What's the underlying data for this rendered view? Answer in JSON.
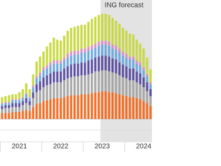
{
  "chart_data": {
    "type": "stacked-bar",
    "categories": [
      null,
      null,
      null,
      null,
      null,
      "2021",
      null,
      null,
      null,
      null,
      null,
      null,
      null,
      null,
      null,
      null,
      null,
      "2022",
      null,
      null,
      null,
      null,
      null,
      null,
      null,
      null,
      null,
      null,
      null,
      "2023",
      null,
      null,
      null,
      null,
      null,
      null,
      null,
      null,
      null,
      null,
      null,
      "2024",
      null,
      null
    ],
    "series": [
      {
        "color": "#f26b21",
        "values": [
          0.6,
          0.6,
          0.6,
          0.7,
          0.7,
          0.7,
          0.8,
          0.9,
          0.8,
          1.2,
          1.5,
          1.6,
          1.8,
          1.9,
          2.0,
          2.1,
          2.1,
          2.1,
          2.2,
          2.3,
          2.4,
          2.4,
          2.4,
          2.5,
          2.5,
          2.5,
          2.6,
          2.7,
          2.7,
          2.8,
          2.8,
          2.7,
          2.7,
          2.6,
          2.5,
          2.4,
          2.3,
          2.2,
          2.2,
          2.1,
          2.0,
          1.8,
          1.6,
          1.3
        ]
      },
      {
        "color": "#a6a6a6",
        "values": [
          0.4,
          0.5,
          0.5,
          0.5,
          0.5,
          0.5,
          0.6,
          0.7,
          0.6,
          0.9,
          1.2,
          1.3,
          1.4,
          1.5,
          1.5,
          1.6,
          1.6,
          1.6,
          1.7,
          1.8,
          1.8,
          1.9,
          1.9,
          1.9,
          1.9,
          2.0,
          2.0,
          2.1,
          2.1,
          2.1,
          2.1,
          2.1,
          2.0,
          2.0,
          1.9,
          1.8,
          1.8,
          1.7,
          1.7,
          1.6,
          1.5,
          1.4,
          1.2,
          1.0
        ]
      },
      {
        "color": "#5b4f9e",
        "values": [
          0.3,
          0.3,
          0.3,
          0.4,
          0.4,
          0.4,
          0.4,
          0.5,
          0.4,
          0.6,
          0.8,
          0.9,
          1.0,
          1.0,
          1.1,
          1.1,
          1.1,
          1.1,
          1.2,
          1.2,
          1.3,
          1.3,
          1.3,
          1.3,
          1.3,
          1.4,
          1.4,
          1.4,
          1.5,
          1.5,
          1.5,
          1.5,
          1.4,
          1.4,
          1.3,
          1.3,
          1.2,
          1.2,
          1.2,
          1.1,
          1.1,
          1.0,
          0.9,
          0.7
        ]
      },
      {
        "color": "#6fa8dc",
        "values": [
          0.2,
          0.2,
          0.2,
          0.3,
          0.3,
          0.3,
          0.3,
          0.4,
          0.3,
          0.5,
          0.6,
          0.6,
          0.7,
          0.7,
          0.8,
          0.8,
          0.8,
          0.8,
          0.8,
          0.9,
          0.9,
          0.9,
          0.9,
          1.0,
          1.0,
          1.0,
          1.0,
          1.0,
          1.1,
          1.1,
          1.1,
          1.1,
          1.0,
          1.0,
          1.0,
          0.9,
          0.9,
          0.9,
          0.9,
          0.8,
          0.8,
          0.7,
          0.6,
          0.5
        ]
      },
      {
        "color": "#d88fc4",
        "values": [
          0.1,
          0.1,
          0.1,
          0.1,
          0.1,
          0.1,
          0.1,
          0.1,
          0.1,
          0.2,
          0.2,
          0.3,
          0.3,
          0.3,
          0.3,
          0.3,
          0.3,
          0.3,
          0.3,
          0.4,
          0.4,
          0.4,
          0.4,
          0.4,
          0.4,
          0.4,
          0.4,
          0.4,
          0.4,
          0.4,
          0.4,
          0.4,
          0.4,
          0.4,
          0.4,
          0.4,
          0.4,
          0.3,
          0.3,
          0.3,
          0.3,
          0.3,
          0.2,
          0.2
        ]
      },
      {
        "color": "#c8d840",
        "values": [
          0.6,
          0.6,
          0.7,
          0.5,
          0.5,
          0.7,
          0.8,
          1.0,
          0.8,
          1.1,
          1.5,
          1.6,
          1.6,
          1.9,
          2.0,
          2.3,
          2.1,
          2.0,
          2.2,
          2.3,
          2.4,
          2.4,
          2.5,
          2.4,
          2.4,
          2.5,
          2.7,
          2.7,
          2.7,
          2.7,
          2.7,
          2.7,
          2.7,
          2.5,
          2.5,
          2.4,
          2.3,
          2.3,
          2.2,
          2.1,
          1.9,
          1.9,
          1.7,
          1.3
        ]
      }
    ],
    "ylim": [
      0,
      12
    ],
    "forecast": {
      "label": "ING forecast",
      "from": "2023"
    }
  }
}
